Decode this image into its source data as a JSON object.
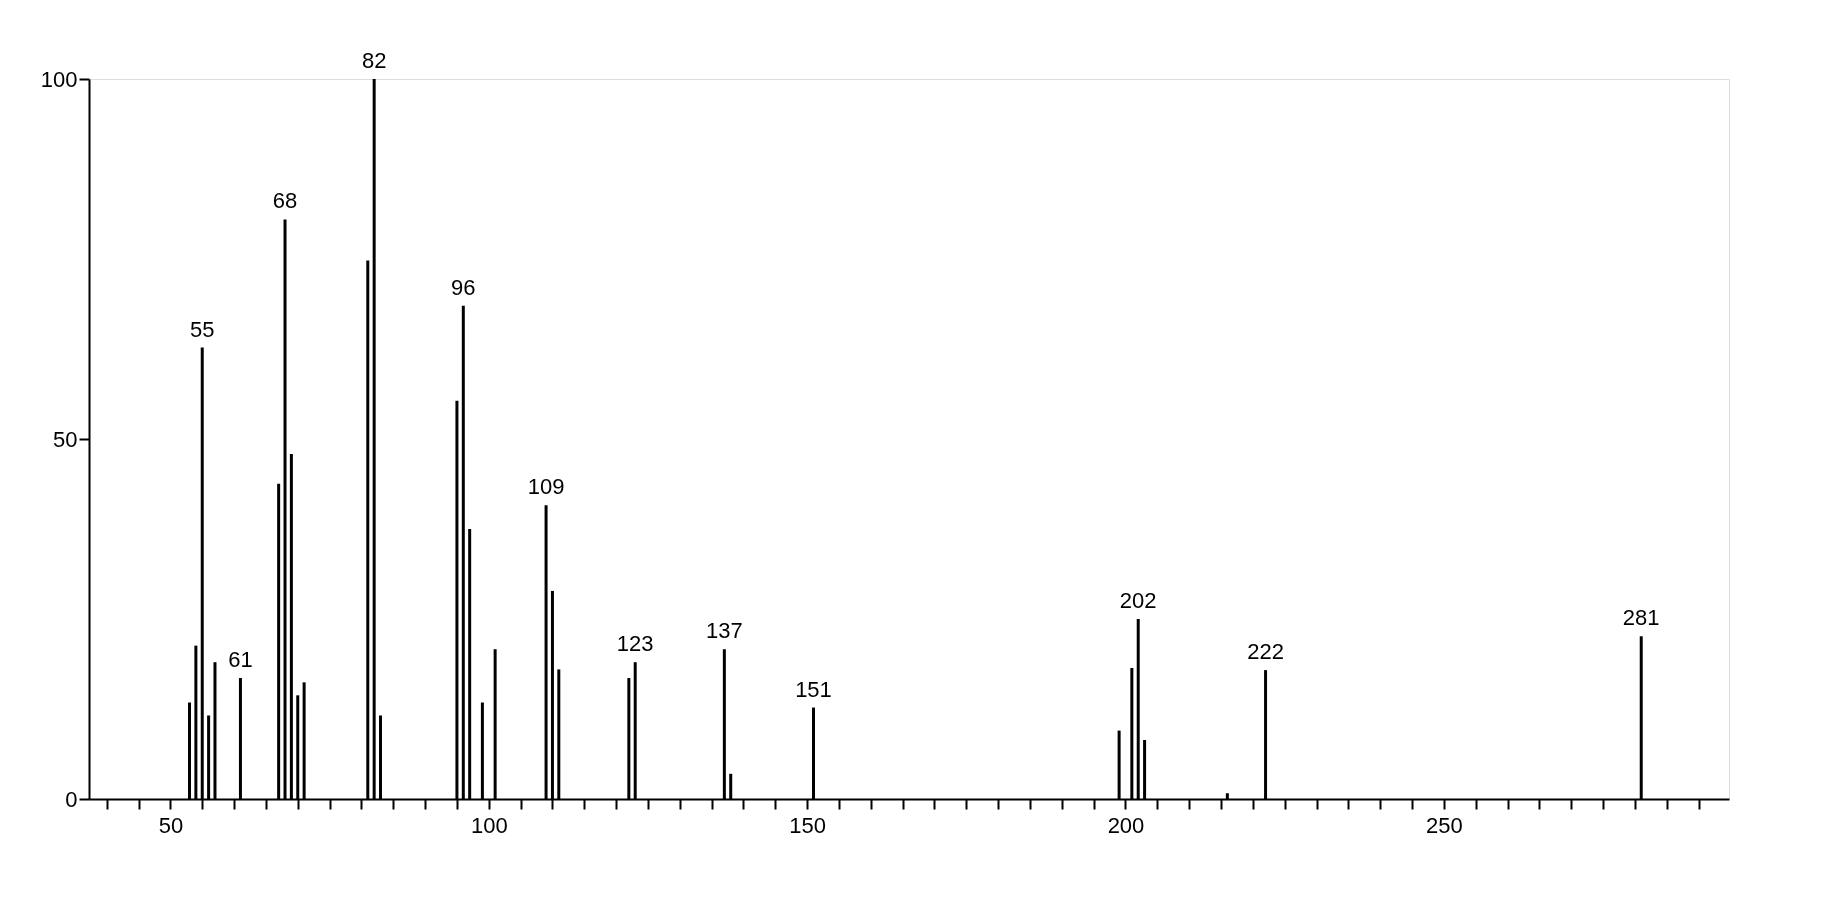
{
  "chart_data": {
    "type": "bar",
    "x": [
      53,
      54,
      55,
      56,
      57,
      61,
      67,
      68,
      69,
      70,
      71,
      81,
      82,
      83,
      95,
      96,
      97,
      99,
      101,
      109,
      110,
      111,
      122,
      123,
      137,
      138,
      151,
      199,
      201,
      202,
      203,
      216,
      222,
      281
    ],
    "values": [
      13.4,
      21.3,
      62.7,
      11.6,
      19,
      16.8,
      43.8,
      80.5,
      47.9,
      14.4,
      16.2,
      74.8,
      100,
      11.6,
      55.3,
      68.5,
      37.5,
      13.4,
      20.8,
      40.8,
      28.9,
      18,
      16.8,
      19,
      20.8,
      3.5,
      12.7,
      9.5,
      18.2,
      25,
      8.2,
      0.8,
      17.9,
      22.6
    ],
    "annotations": [
      {
        "text": "55",
        "x": 55,
        "y": 62.7
      },
      {
        "text": "61",
        "x": 61,
        "y": 16.8
      },
      {
        "text": "68",
        "x": 68,
        "y": 80.5
      },
      {
        "text": "82",
        "x": 82,
        "y": 100
      },
      {
        "text": "96",
        "x": 96,
        "y": 68.5
      },
      {
        "text": "109",
        "x": 109,
        "y": 40.8
      },
      {
        "text": "123",
        "x": 123,
        "y": 19
      },
      {
        "text": "137",
        "x": 137,
        "y": 20.8
      },
      {
        "text": "151",
        "x": 151,
        "y": 12.7
      },
      {
        "text": "202",
        "x": 202,
        "y": 25
      },
      {
        "text": "222",
        "x": 222,
        "y": 17.9
      },
      {
        "text": "281",
        "x": 281,
        "y": 22.6
      }
    ],
    "color": "#000000",
    "xlim": [
      38,
      294
    ],
    "xticks": [
      {
        "value": 40,
        "label": null
      },
      {
        "value": 45,
        "label": null
      },
      50,
      {
        "value": 55,
        "label": null
      },
      {
        "value": 60,
        "label": null
      },
      {
        "value": 65,
        "label": null
      },
      {
        "value": 70,
        "label": null
      },
      {
        "value": 75,
        "label": null
      },
      {
        "value": 80,
        "label": null
      },
      {
        "value": 85,
        "label": null
      },
      {
        "value": 90,
        "label": null
      },
      {
        "value": 95,
        "label": null
      },
      100,
      {
        "value": 105,
        "label": null
      },
      {
        "value": 110,
        "label": null
      },
      {
        "value": 115,
        "label": null
      },
      {
        "value": 120,
        "label": null
      },
      {
        "value": 125,
        "label": null
      },
      {
        "value": 130,
        "label": null
      },
      {
        "value": 135,
        "label": null
      },
      {
        "value": 140,
        "label": null
      },
      {
        "value": 145,
        "label": null
      },
      150,
      {
        "value": 155,
        "label": null
      },
      {
        "value": 160,
        "label": null
      },
      {
        "value": 165,
        "label": null
      },
      {
        "value": 170,
        "label": null
      },
      {
        "value": 175,
        "label": null
      },
      {
        "value": 180,
        "label": null
      },
      {
        "value": 185,
        "label": null
      },
      {
        "value": 190,
        "label": null
      },
      {
        "value": 195,
        "label": null
      },
      200,
      {
        "value": 205,
        "label": null
      },
      {
        "value": 210,
        "label": null
      },
      {
        "value": 215,
        "label": null
      },
      {
        "value": 220,
        "label": null
      },
      {
        "value": 225,
        "label": null
      },
      {
        "value": 230,
        "label": null
      },
      {
        "value": 235,
        "label": null
      },
      {
        "value": 240,
        "label": null
      },
      {
        "value": 245,
        "label": null
      },
      250,
      {
        "value": 255,
        "label": null
      },
      {
        "value": 260,
        "label": null
      },
      {
        "value": 265,
        "label": null
      },
      {
        "value": 270,
        "label": null
      },
      {
        "value": 275,
        "label": null
      },
      {
        "value": 280,
        "label": null
      },
      {
        "value": 285,
        "label": null
      },
      {
        "value": 290,
        "label": null
      }
    ],
    "ylim": [
      0,
      100
    ],
    "yticks": [
      0,
      50,
      100
    ],
    "grid": false
  }
}
